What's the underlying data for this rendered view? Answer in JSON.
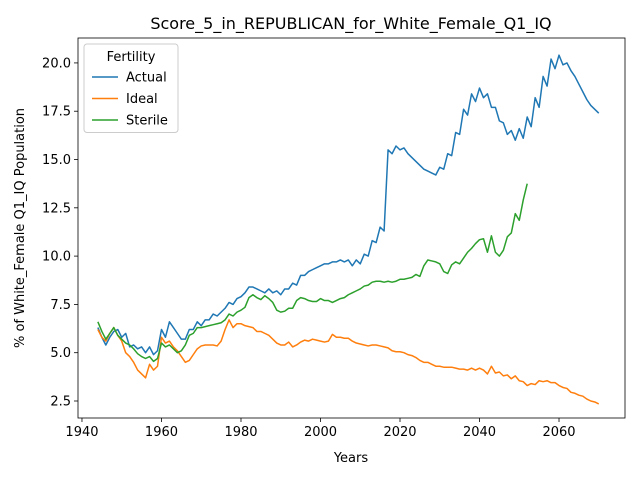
{
  "chart_data": {
    "type": "line",
    "title": "Score_5_in_REPUBLICAN_for_White_Female_Q1_IQ",
    "xlabel": "Years",
    "ylabel": "% of White_Female Q1_IQ Population",
    "legend_title": "Fertility",
    "legend": "upper left",
    "x": [
      1944,
      1945,
      1946,
      1947,
      1948,
      1949,
      1950,
      1951,
      1952,
      1953,
      1954,
      1955,
      1956,
      1957,
      1958,
      1959,
      1960,
      1961,
      1962,
      1963,
      1964,
      1965,
      1966,
      1967,
      1968,
      1969,
      1970,
      1971,
      1972,
      1973,
      1974,
      1975,
      1976,
      1977,
      1978,
      1979,
      1980,
      1981,
      1982,
      1983,
      1984,
      1985,
      1986,
      1987,
      1988,
      1989,
      1990,
      1991,
      1992,
      1993,
      1994,
      1995,
      1996,
      1997,
      1998,
      1999,
      2000,
      2001,
      2002,
      2003,
      2004,
      2005,
      2006,
      2007,
      2008,
      2009,
      2010,
      2011,
      2012,
      2013,
      2014,
      2015,
      2016,
      2017,
      2018,
      2019,
      2020,
      2021,
      2022,
      2023,
      2024,
      2025,
      2026,
      2027,
      2028,
      2029,
      2030,
      2031,
      2032,
      2033,
      2034,
      2035,
      2036,
      2037,
      2038,
      2039,
      2040,
      2041,
      2042,
      2043,
      2044,
      2045,
      2046,
      2047,
      2048,
      2049,
      2050,
      2051,
      2052,
      2053,
      2054,
      2055,
      2056,
      2057,
      2058,
      2059,
      2060,
      2061,
      2062,
      2063,
      2064,
      2065,
      2066,
      2067,
      2068,
      2069,
      2070
    ],
    "series": [
      {
        "name": "Actual",
        "color": "#1f77b4",
        "values": [
          6.3,
          5.8,
          5.4,
          5.8,
          6.1,
          6.2,
          5.8,
          6.0,
          5.3,
          5.4,
          5.2,
          5.3,
          5.0,
          5.3,
          4.9,
          5.1,
          6.2,
          5.8,
          6.6,
          6.3,
          6.0,
          5.7,
          5.7,
          6.2,
          6.2,
          6.6,
          6.4,
          6.7,
          6.7,
          7.0,
          6.9,
          7.1,
          7.3,
          7.6,
          7.5,
          7.8,
          7.9,
          8.1,
          8.4,
          8.4,
          8.3,
          8.2,
          8.1,
          8.3,
          8.1,
          8.2,
          8.0,
          8.3,
          8.3,
          8.6,
          8.5,
          9.0,
          9.0,
          9.2,
          9.3,
          9.4,
          9.5,
          9.6,
          9.6,
          9.7,
          9.7,
          9.8,
          9.7,
          9.8,
          9.5,
          9.8,
          9.6,
          10.1,
          10.0,
          10.8,
          10.7,
          11.5,
          11.3,
          15.5,
          15.3,
          15.7,
          15.5,
          15.6,
          15.3,
          15.1,
          14.9,
          14.7,
          14.5,
          14.4,
          14.3,
          14.2,
          14.6,
          14.5,
          15.3,
          15.2,
          16.4,
          16.3,
          17.6,
          17.3,
          18.4,
          18.0,
          18.7,
          18.2,
          18.4,
          17.7,
          17.7,
          17.0,
          16.9,
          16.3,
          16.5,
          16.0,
          16.6,
          16.1,
          17.2,
          16.7,
          18.2,
          17.7,
          19.3,
          18.8,
          20.2,
          19.7,
          20.4,
          19.9,
          20.0,
          19.6,
          19.3,
          18.9,
          18.5,
          18.1,
          17.8,
          17.6,
          17.4
        ]
      },
      {
        "name": "Ideal",
        "color": "#ff7f0e",
        "values": [
          6.2,
          5.8,
          5.6,
          6.0,
          6.3,
          5.9,
          5.6,
          5.0,
          4.8,
          4.5,
          4.1,
          3.9,
          3.7,
          4.4,
          4.1,
          4.3,
          5.8,
          5.5,
          5.6,
          5.3,
          5.1,
          4.8,
          4.5,
          4.6,
          4.9,
          5.2,
          5.35,
          5.4,
          5.4,
          5.4,
          5.35,
          5.6,
          6.2,
          6.7,
          6.3,
          6.5,
          6.5,
          6.4,
          6.35,
          6.3,
          6.1,
          6.1,
          6.0,
          5.9,
          5.7,
          5.5,
          5.4,
          5.4,
          5.55,
          5.3,
          5.4,
          5.55,
          5.65,
          5.6,
          5.7,
          5.65,
          5.6,
          5.55,
          5.6,
          5.95,
          5.8,
          5.8,
          5.75,
          5.75,
          5.6,
          5.5,
          5.45,
          5.4,
          5.35,
          5.4,
          5.4,
          5.35,
          5.3,
          5.25,
          5.1,
          5.05,
          5.05,
          5.0,
          4.9,
          4.85,
          4.75,
          4.6,
          4.5,
          4.5,
          4.4,
          4.3,
          4.3,
          4.25,
          4.25,
          4.25,
          4.2,
          4.15,
          4.15,
          4.1,
          4.2,
          4.1,
          4.2,
          4.1,
          3.9,
          4.3,
          3.95,
          4.0,
          3.8,
          3.85,
          3.65,
          3.8,
          3.55,
          3.5,
          3.3,
          3.4,
          3.35,
          3.55,
          3.5,
          3.55,
          3.45,
          3.45,
          3.3,
          3.2,
          3.15,
          2.95,
          2.9,
          2.8,
          2.75,
          2.6,
          2.5,
          2.45,
          2.35
        ]
      },
      {
        "name": "Sterile",
        "color": "#2ca02c",
        "values": [
          6.6,
          6.1,
          5.7,
          6.0,
          6.3,
          5.9,
          5.7,
          5.5,
          5.4,
          5.2,
          4.95,
          4.8,
          4.7,
          4.8,
          4.55,
          4.7,
          5.5,
          5.3,
          5.4,
          5.2,
          5.0,
          5.1,
          5.4,
          5.9,
          6.0,
          6.3,
          6.3,
          6.35,
          6.4,
          6.45,
          6.5,
          6.55,
          6.7,
          7.0,
          6.9,
          7.1,
          7.2,
          7.35,
          7.85,
          8.0,
          7.85,
          7.75,
          7.95,
          7.8,
          7.6,
          7.2,
          7.1,
          7.15,
          7.3,
          7.3,
          7.7,
          7.85,
          7.8,
          7.7,
          7.65,
          7.65,
          7.8,
          7.7,
          7.7,
          7.6,
          7.7,
          7.8,
          7.85,
          8.0,
          8.1,
          8.2,
          8.3,
          8.45,
          8.5,
          8.65,
          8.7,
          8.7,
          8.65,
          8.7,
          8.65,
          8.7,
          8.8,
          8.8,
          8.85,
          8.9,
          9.05,
          8.95,
          9.5,
          9.8,
          9.75,
          9.7,
          9.6,
          9.2,
          9.1,
          9.55,
          9.7,
          9.6,
          9.9,
          10.2,
          10.4,
          10.65,
          10.85,
          10.9,
          10.2,
          11.05,
          10.2,
          10.0,
          10.3,
          11.0,
          11.2,
          12.2,
          11.85,
          12.9,
          13.75,
          null,
          null,
          null,
          null,
          null,
          null,
          null,
          null,
          null,
          null,
          null,
          null,
          null,
          null,
          null,
          null,
          null,
          null
        ]
      }
    ],
    "xlim": [
      1939,
      2076.6
    ],
    "ylim": [
      1.62,
      21.29
    ],
    "xticks": [
      1940,
      1960,
      1980,
      2000,
      2020,
      2040,
      2060
    ],
    "yticks": [
      2.5,
      {
        "value": 5,
        "label": "5.0"
      },
      7.5,
      {
        "value": 10,
        "label": "10.0"
      },
      12.5,
      {
        "value": 15,
        "label": "15.0"
      },
      17.5,
      {
        "value": 20,
        "label": "20.0"
      }
    ],
    "grid": false
  }
}
